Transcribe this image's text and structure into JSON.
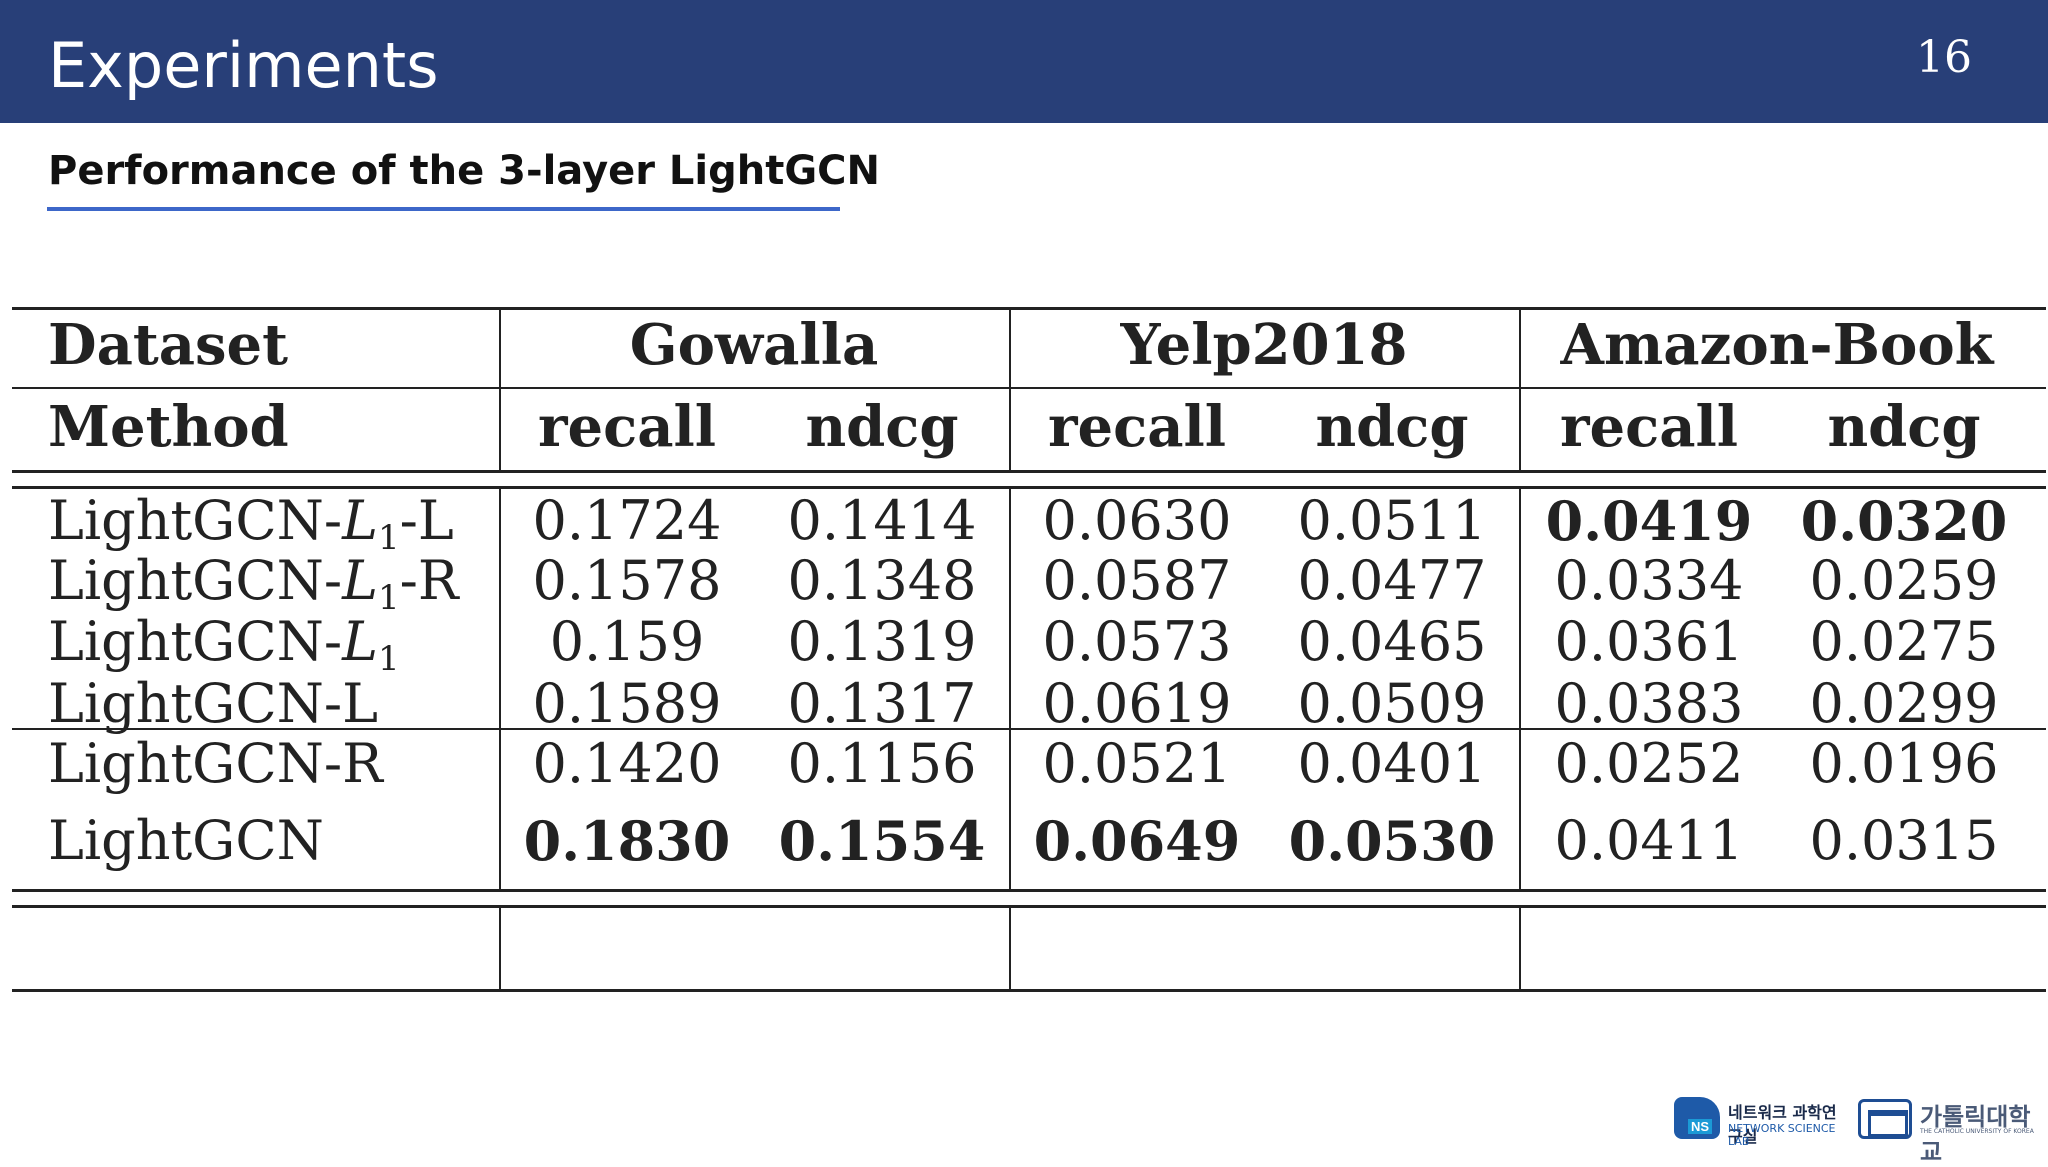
{
  "header": {
    "title": "Experiments",
    "page_number": "16"
  },
  "subtitle": "Performance of the 3-layer LightGCN",
  "table": {
    "dataset_label": "Dataset",
    "method_label": "Method",
    "datasets": [
      "Gowalla",
      "Yelp2018",
      "Amazon-Book"
    ],
    "metrics": [
      "recall",
      "ndcg",
      "recall",
      "ndcg",
      "recall",
      "ndcg"
    ],
    "rows": [
      {
        "method_prefix": "LightGCN-",
        "method_var": "L",
        "method_sub": "1",
        "method_suffix": "-L",
        "values": [
          "0.1724",
          "0.1414",
          "0.0630",
          "0.0511",
          "0.0419",
          "0.0320"
        ],
        "bold": [
          false,
          false,
          false,
          false,
          true,
          true
        ]
      },
      {
        "method_prefix": "LightGCN-",
        "method_var": "L",
        "method_sub": "1",
        "method_suffix": "-R",
        "values": [
          "0.1578",
          "0.1348",
          "0.0587",
          "0.0477",
          "0.0334",
          "0.0259"
        ],
        "bold": [
          false,
          false,
          false,
          false,
          false,
          false
        ]
      },
      {
        "method_prefix": "LightGCN-",
        "method_var": "L",
        "method_sub": "1",
        "method_suffix": "",
        "values": [
          "0.159",
          "0.1319",
          "0.0573",
          "0.0465",
          "0.0361",
          "0.0275"
        ],
        "bold": [
          false,
          false,
          false,
          false,
          false,
          false
        ]
      },
      {
        "method_prefix": "LightGCN-L",
        "method_var": "",
        "method_sub": "",
        "method_suffix": "",
        "values": [
          "0.1589",
          "0.1317",
          "0.0619",
          "0.0509",
          "0.0383",
          "0.0299"
        ],
        "bold": [
          false,
          false,
          false,
          false,
          false,
          false
        ]
      },
      {
        "method_prefix": "LightGCN-R",
        "method_var": "",
        "method_sub": "",
        "method_suffix": "",
        "values": [
          "0.1420",
          "0.1156",
          "0.0521",
          "0.0401",
          "0.0252",
          "0.0196"
        ],
        "bold": [
          false,
          false,
          false,
          false,
          false,
          false
        ]
      },
      {
        "method_prefix": "LightGCN",
        "method_var": "",
        "method_sub": "",
        "method_suffix": "",
        "values": [
          "0.1830",
          "0.1554",
          "0.0649",
          "0.0530",
          "0.0411",
          "0.0315"
        ],
        "bold": [
          true,
          true,
          true,
          true,
          false,
          false
        ]
      }
    ]
  },
  "footer": {
    "lab_mark": "NS",
    "lab_name_ko": "네트워크 과학연구실",
    "lab_name_en": "NETWORK SCIENCE LAB",
    "university_ko": "가톨릭대학교",
    "university_en": "THE CATHOLIC UNIVERSITY OF KOREA"
  }
}
